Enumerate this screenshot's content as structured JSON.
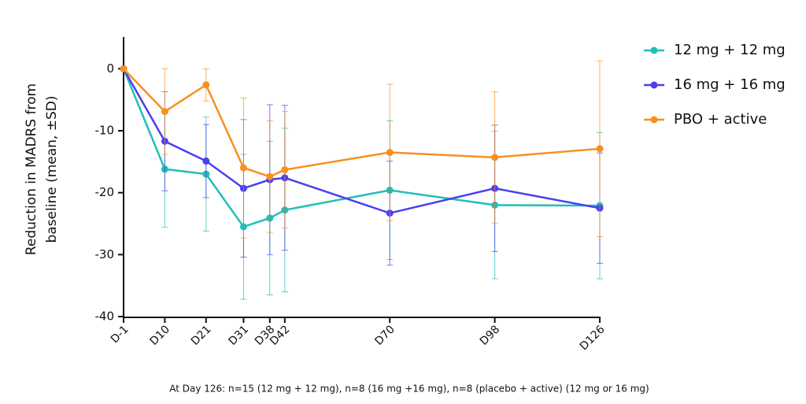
{
  "chart_data": {
    "type": "line",
    "ylabel": [
      "Reduction in MADRS from",
      "baseline (mean, ±SD)"
    ],
    "footnote": "At Day 126: n=15 (12 mg + 12 mg), n=8 (16 mg +16 mg), n=8 (placebo + active) (12 mg or 16 mg)",
    "x": [
      -1,
      10,
      21,
      31,
      38,
      42,
      70,
      98,
      126
    ],
    "xlim": [
      -1,
      126
    ],
    "xticks": [
      {
        "value": -1,
        "label": "D-1"
      },
      {
        "value": 10,
        "label": "D10"
      },
      {
        "value": 21,
        "label": "D21"
      },
      {
        "value": 31,
        "label": "D31"
      },
      {
        "value": 38,
        "label": "D38"
      },
      {
        "value": 42,
        "label": "D42"
      },
      {
        "value": 70,
        "label": "D70"
      },
      {
        "value": 98,
        "label": "D98"
      },
      {
        "value": 126,
        "label": "D126"
      }
    ],
    "ylim": [
      -40,
      5
    ],
    "yticks": [
      0,
      -10,
      -20,
      -30,
      -40
    ],
    "legend": "right",
    "series": [
      {
        "name": "12 mg + 12 mg",
        "color": "#20bfb7",
        "values": [
          0,
          -16.2,
          -17,
          -25.5,
          -24.1,
          -22.8,
          -19.6,
          -22,
          -22.1
        ],
        "errors": [
          0,
          9.4,
          9.2,
          11.7,
          12.4,
          13.2,
          11.2,
          11.9,
          11.8
        ]
      },
      {
        "name": "16 mg + 16 mg",
        "color": "#4b3ff0",
        "values": [
          0,
          -11.7,
          -14.9,
          -19.3,
          -17.9,
          -17.6,
          -23.3,
          -19.3,
          -22.5
        ],
        "errors": [
          0,
          8,
          5.9,
          11.1,
          12.1,
          11.7,
          8.4,
          10.2,
          8.9
        ]
      },
      {
        "name": "PBO + active",
        "color": "#f7901e",
        "values": [
          0,
          -6.9,
          -2.6,
          -16,
          -17.4,
          -16.3,
          -13.5,
          -14.3,
          -12.9
        ],
        "errors": [
          0,
          6.9,
          2.6,
          11.3,
          9,
          9.4,
          11,
          10.6,
          14.2
        ]
      }
    ]
  }
}
